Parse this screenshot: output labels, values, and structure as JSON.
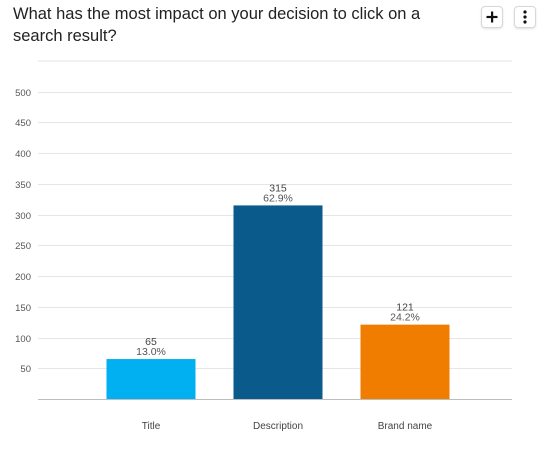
{
  "question": {
    "title": "What has the most impact on your decision to click on a search result?"
  },
  "toolbar": {
    "add_icon": "plus-icon",
    "more_icon": "vertical-dots-icon"
  },
  "chart_data": {
    "type": "bar",
    "categories": [
      "Title",
      "Description",
      "Brand name"
    ],
    "values": [
      65,
      315,
      121
    ],
    "percent_labels": [
      "13.0%",
      "62.9%",
      "24.2%"
    ],
    "colors": [
      "#00b0f0",
      "#0b5a8c",
      "#f07c00"
    ],
    "ylim": [
      0,
      550
    ],
    "yticks": [
      50,
      100,
      150,
      200,
      250,
      300,
      350,
      400,
      450,
      500
    ],
    "grid": true,
    "xlabel": "",
    "ylabel": ""
  }
}
